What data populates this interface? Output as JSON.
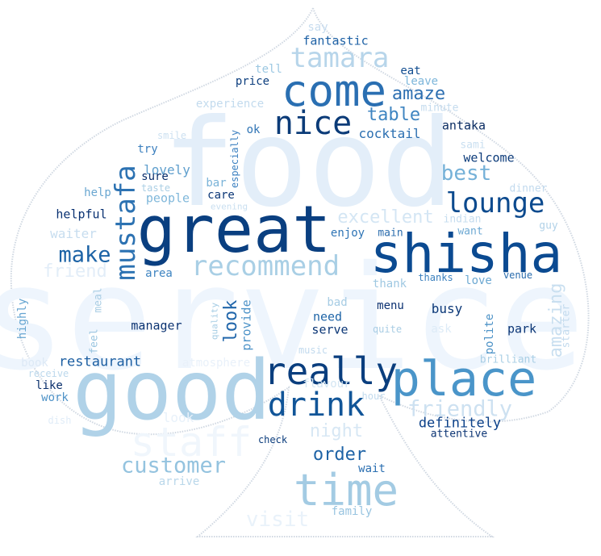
{
  "words": [
    {
      "text": "service",
      "color": "#eef5fd"
    },
    {
      "text": "food",
      "color": "#e3eef9"
    },
    {
      "text": "good",
      "color": "#b0d2e8"
    },
    {
      "text": "great",
      "color": "#0a3f80"
    },
    {
      "text": "shisha",
      "color": "#0b4a91"
    },
    {
      "text": "place",
      "color": "#4a95c9"
    },
    {
      "text": "come",
      "color": "#2a6fb2"
    },
    {
      "text": "time",
      "color": "#a3cbe3"
    },
    {
      "text": "staff",
      "color": "#f0f6fc"
    },
    {
      "text": "really",
      "color": "#0a3e7e"
    },
    {
      "text": "nice",
      "color": "#0b3b78"
    },
    {
      "text": "drink",
      "color": "#115598"
    },
    {
      "text": "tamara",
      "color": "#b7d5ea"
    },
    {
      "text": "lounge",
      "color": "#0c4a8e"
    },
    {
      "text": "recommend",
      "color": "#a9cfe5"
    },
    {
      "text": "mustafa",
      "color": "#2c72b2"
    },
    {
      "text": "customer",
      "color": "#94c3df"
    },
    {
      "text": "friendly",
      "color": "#cde1f1"
    },
    {
      "text": "make",
      "color": "#1c63a6"
    },
    {
      "text": "best",
      "color": "#75b1d8"
    },
    {
      "text": "excellent",
      "color": "#d4e6f4"
    },
    {
      "text": "order",
      "color": "#1e63a6"
    },
    {
      "text": "night",
      "color": "#d7e7f4"
    },
    {
      "text": "visit",
      "color": "#e9f2fa"
    },
    {
      "text": "amaze",
      "color": "#2d6fb1"
    },
    {
      "text": "table",
      "color": "#3f85c1"
    },
    {
      "text": "amazing",
      "color": "#c9dff0"
    },
    {
      "text": "look",
      "color": "#2267ab"
    },
    {
      "text": "restaurant",
      "color": "#1d5fa2"
    },
    {
      "text": "definitely",
      "color": "#0c4189"
    },
    {
      "text": "cocktail",
      "color": "#2b6fb1"
    },
    {
      "text": "fantastic",
      "color": "#1f62a6"
    },
    {
      "text": "lovely",
      "color": "#5f9fcd"
    },
    {
      "text": "antaka",
      "color": "#0b2d63"
    },
    {
      "text": "serve",
      "color": "#0a3575"
    },
    {
      "text": "busy",
      "color": "#0b3777"
    },
    {
      "text": "need",
      "color": "#1e64a7"
    },
    {
      "text": "welcome",
      "color": "#0c3b7a"
    },
    {
      "text": "people",
      "color": "#7fb7da"
    },
    {
      "text": "manager",
      "color": "#0b3371"
    },
    {
      "text": "provide",
      "color": "#4d93c8"
    },
    {
      "text": "experience",
      "color": "#c3dbee"
    },
    {
      "text": "enjoy",
      "color": "#2e74b5"
    },
    {
      "text": "waiter",
      "color": "#c7ddef"
    },
    {
      "text": "helpful",
      "color": "#0a3272"
    },
    {
      "text": "friend",
      "color": "#e2edf8"
    },
    {
      "text": "menu",
      "color": "#0b3171"
    },
    {
      "text": "park",
      "color": "#0b3575"
    },
    {
      "text": "price",
      "color": "#0c3e7e"
    },
    {
      "text": "eat",
      "color": "#114d90"
    },
    {
      "text": "say",
      "color": "#c7dcef"
    },
    {
      "text": "tell",
      "color": "#9cc8e2"
    },
    {
      "text": "leave",
      "color": "#7db6da"
    },
    {
      "text": "minute",
      "color": "#c4dbee"
    },
    {
      "text": "try",
      "color": "#3b7fbe"
    },
    {
      "text": "sure",
      "color": "#0a2e6b"
    },
    {
      "text": "bar",
      "color": "#7ab3d8"
    },
    {
      "text": "care",
      "color": "#0b3676"
    },
    {
      "text": "help",
      "color": "#6aa7d1"
    },
    {
      "text": "taste",
      "color": "#abcfe5"
    },
    {
      "text": "smile",
      "color": "#cde1f1"
    },
    {
      "text": "especially",
      "color": "#3c80c0"
    },
    {
      "text": "ok",
      "color": "#2f74b5"
    },
    {
      "text": "evening",
      "color": "#c9dff0"
    },
    {
      "text": "sami",
      "color": "#c9dff0"
    },
    {
      "text": "indian",
      "color": "#c5dcef"
    },
    {
      "text": "want",
      "color": "#6da9d3"
    },
    {
      "text": "dinner",
      "color": "#c2daee"
    },
    {
      "text": "guy",
      "color": "#b2d2e8"
    },
    {
      "text": "main",
      "color": "#2a6cad"
    },
    {
      "text": "area",
      "color": "#3e84c1"
    },
    {
      "text": "meal",
      "color": "#a9cde4"
    },
    {
      "text": "highly",
      "color": "#66a5d1"
    },
    {
      "text": "bad",
      "color": "#a6cce4"
    },
    {
      "text": "thank",
      "color": "#9fc8e2"
    },
    {
      "text": "thanks",
      "color": "#3b80be"
    },
    {
      "text": "love",
      "color": "#6ca8d2"
    },
    {
      "text": "venue",
      "color": "#2a6cad"
    },
    {
      "text": "quality",
      "color": "#a4cce4"
    },
    {
      "text": "feel",
      "color": "#9ac5e0"
    },
    {
      "text": "quite",
      "color": "#a9cde4"
    },
    {
      "text": "ask",
      "color": "#ddebf7"
    },
    {
      "text": "polite",
      "color": "#4e93c7"
    },
    {
      "text": "starter",
      "color": "#c4dbee"
    },
    {
      "text": "brilliant",
      "color": "#aacfe5"
    },
    {
      "text": "book",
      "color": "#dde9f6"
    },
    {
      "text": "atmosphere",
      "color": "#e9f1fa"
    },
    {
      "text": "music",
      "color": "#c2daee"
    },
    {
      "text": "receive",
      "color": "#bcd8ec"
    },
    {
      "text": "like",
      "color": "#0a2f6c"
    },
    {
      "text": "work",
      "color": "#4e92c7"
    },
    {
      "text": "flavour",
      "color": "#d4e6f3"
    },
    {
      "text": "hour",
      "color": "#c3dbee"
    },
    {
      "text": "dish",
      "color": "#e0ecf8"
    },
    {
      "text": "check",
      "color": "#0b3c7c"
    },
    {
      "text": "attentive",
      "color": "#0b3474"
    },
    {
      "text": "wait",
      "color": "#2b6fb1"
    },
    {
      "text": "arrive",
      "color": "#b9d7ea"
    },
    {
      "text": "family",
      "color": "#98c4e0"
    },
    {
      "text": "look",
      "color": "#e8f1fa"
    }
  ]
}
